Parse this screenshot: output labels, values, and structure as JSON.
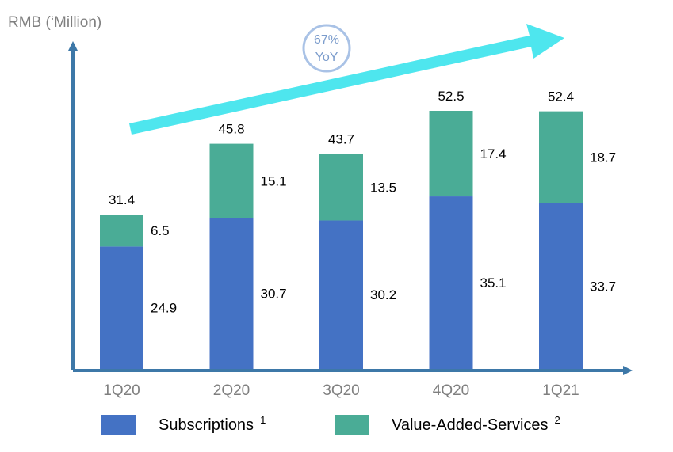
{
  "chart_data": {
    "type": "bar",
    "stacked": true,
    "ylabel": "RMB (‘Million)",
    "categories": [
      "1Q20",
      "2Q20",
      "3Q20",
      "4Q20",
      "1Q21"
    ],
    "series": [
      {
        "name": "Subscriptions",
        "footnote": "1",
        "color": "#4472c4",
        "values": [
          24.9,
          30.7,
          30.2,
          35.1,
          33.7
        ]
      },
      {
        "name": "Value-Added-Services",
        "footnote": "2",
        "color": "#4aac96",
        "values": [
          6.5,
          15.1,
          13.5,
          17.4,
          18.7
        ]
      }
    ],
    "totals": [
      31.4,
      45.8,
      43.7,
      52.5,
      52.4
    ],
    "ylim": [
      0,
      52.5
    ],
    "annotation": {
      "value": "67%",
      "label": "YoY",
      "arrow_color": "#4ee6ee",
      "circle_color": "#a9c2e6"
    },
    "axis_color": "#3d78a8",
    "grid": false,
    "legend_position": "bottom"
  }
}
